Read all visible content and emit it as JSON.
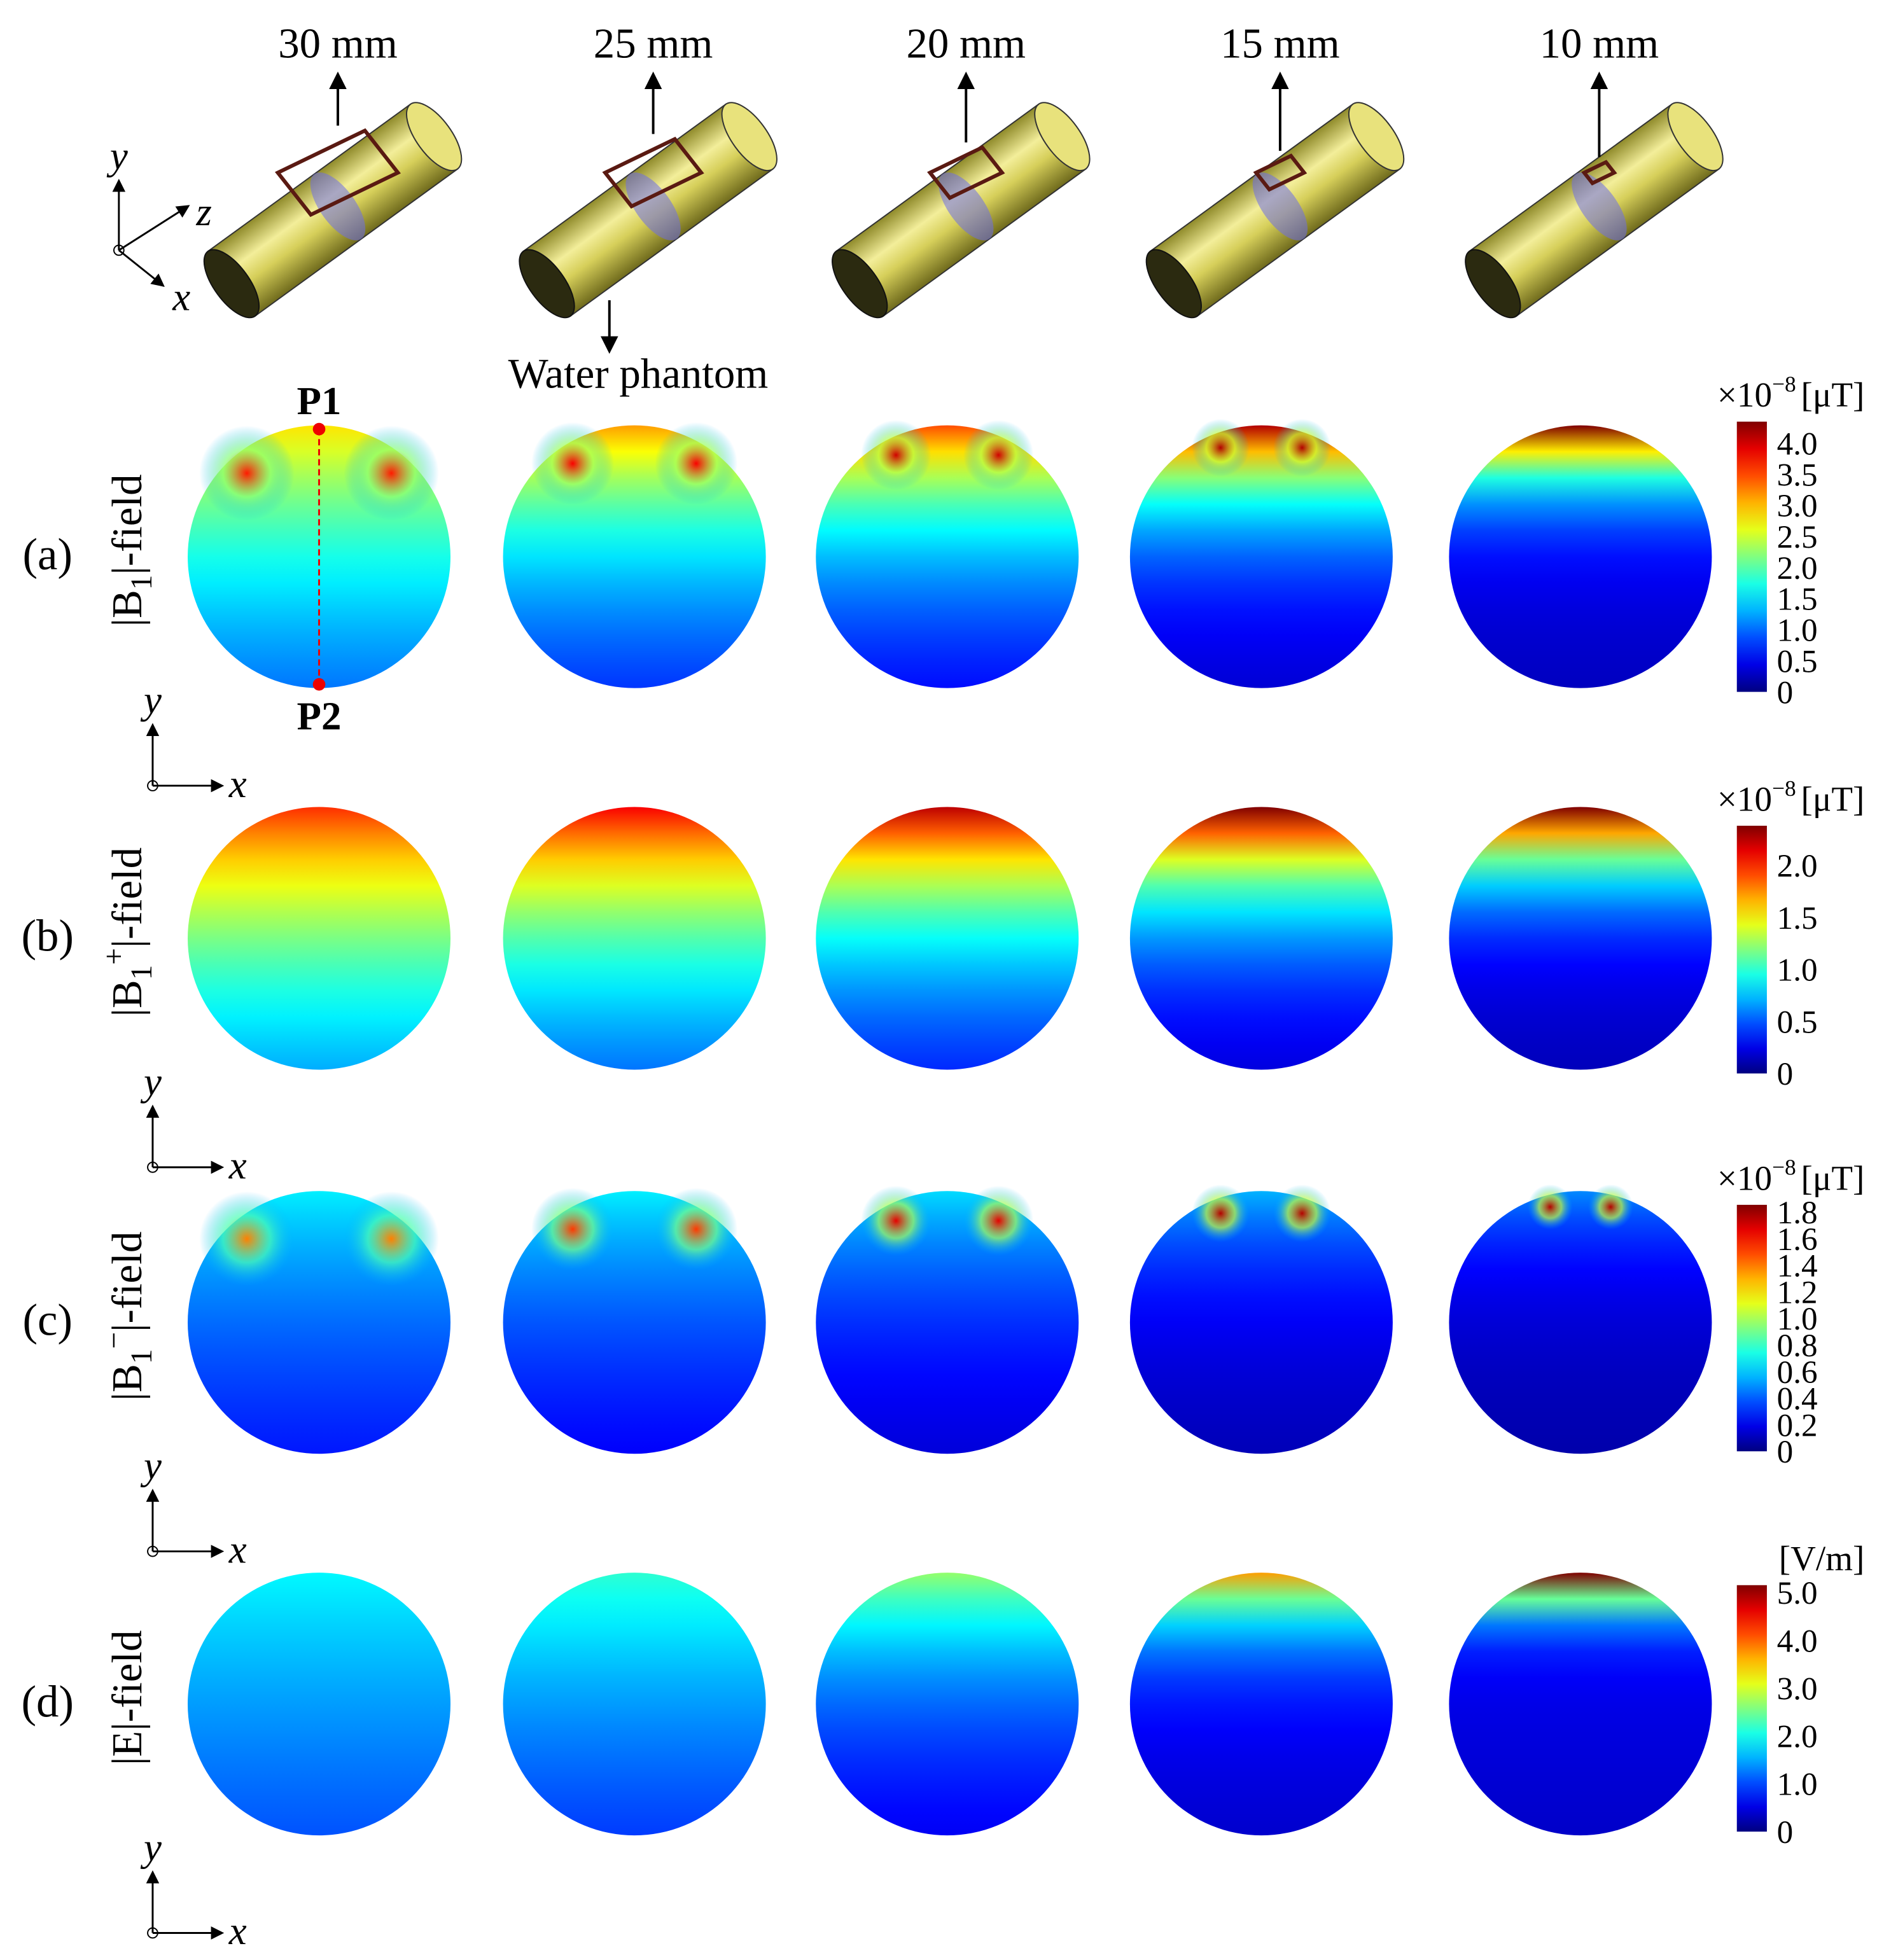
{
  "top": {
    "offsets": [
      "30 mm",
      "25 mm",
      "20 mm",
      "15 mm",
      "10 mm"
    ],
    "axes": [
      "y",
      "z",
      "x"
    ],
    "phantom_label": "Water phantom"
  },
  "points": [
    "P1",
    "P2"
  ],
  "rows": [
    {
      "tag": "(a)",
      "label": {
        "main": "|B",
        "sub": "1",
        "tail": "|-field"
      },
      "unit": {
        "base": "×10",
        "exp": "−8",
        "text": "[μT]"
      },
      "ticks": [
        "0",
        "0.5",
        "1.0",
        "1.5",
        "2.0",
        "2.5",
        "3.0",
        "3.5",
        "4.0"
      ],
      "axes": [
        "y",
        "x"
      ]
    },
    {
      "tag": "(b)",
      "label": {
        "main": "|B",
        "sub": "1",
        "sup": "+",
        "tail": "|-field"
      },
      "unit": {
        "base": "×10",
        "exp": "−8",
        "text": "[μT]"
      },
      "ticks": [
        "0",
        "0.5",
        "1.0",
        "1.5",
        "2.0"
      ],
      "axes": [
        "y",
        "x"
      ]
    },
    {
      "tag": "(c)",
      "label": {
        "main": "|B",
        "sub": "1",
        "sup": "−",
        "tail": "|-field"
      },
      "unit": {
        "base": "×10",
        "exp": "−8",
        "text": "[μT]"
      },
      "ticks": [
        "0",
        "0.2",
        "0.4",
        "0.6",
        "0.8",
        "1.0",
        "1.2",
        "1.4",
        "1.6",
        "1.8"
      ],
      "axes": [
        "y",
        "x"
      ]
    },
    {
      "tag": "(d)",
      "label": {
        "main": "|E|-field"
      },
      "unit": {
        "text": "[V/m]"
      },
      "ticks": [
        "0",
        "1.0",
        "2.0",
        "3.0",
        "4.0",
        "5.0"
      ],
      "axes": [
        "y",
        "x"
      ]
    }
  ]
}
